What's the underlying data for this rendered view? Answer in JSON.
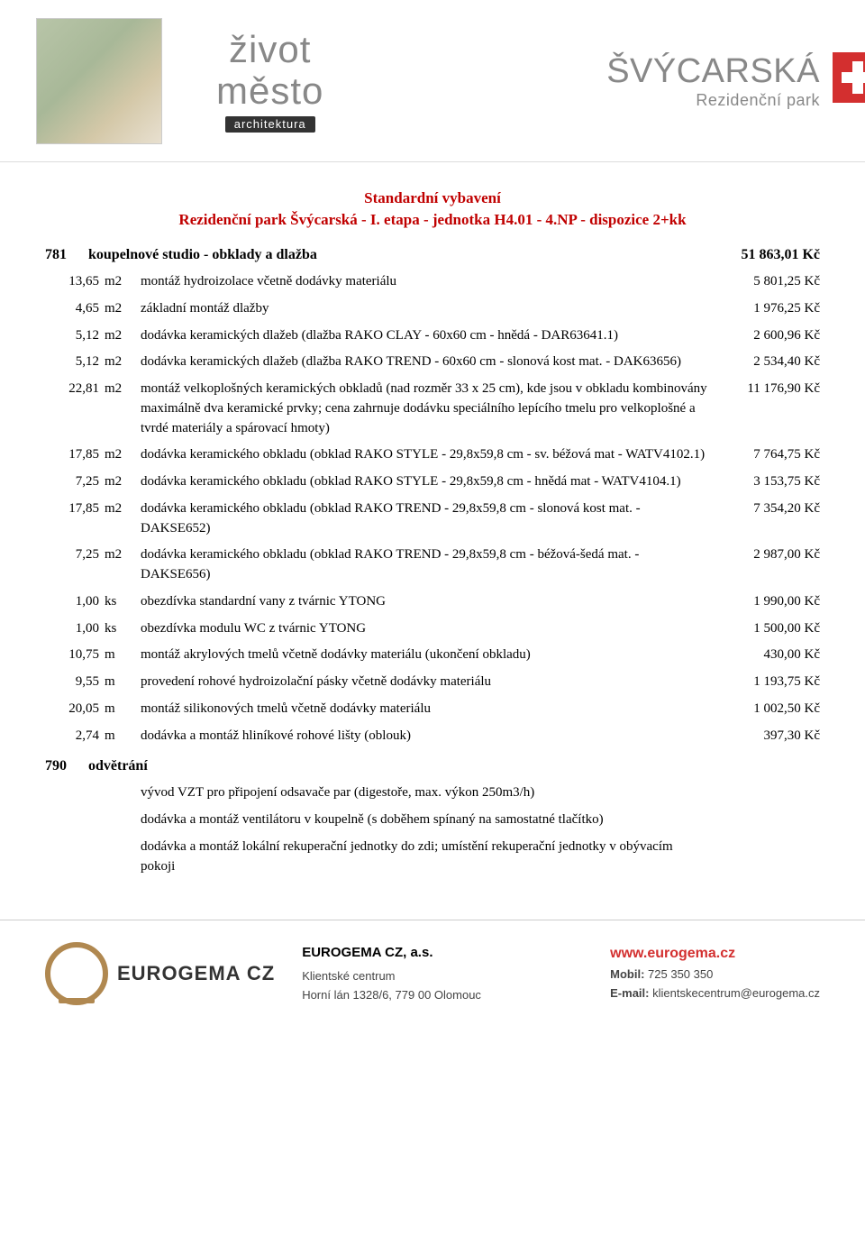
{
  "header": {
    "logo1_line1": "život",
    "logo1_line2": "město",
    "logo1_tag": "architektura",
    "logo2_line1": "ŠVÝCARSKÁ",
    "logo2_line2": "Rezidenční park"
  },
  "doc": {
    "title": "Standardní vybavení",
    "subtitle": "Rezidenční park Švýcarská - I. etapa - jednotka H4.01 - 4.NP - dispozice 2+kk"
  },
  "sections": [
    {
      "code": "781",
      "title": "koupelnové studio - obklady a dlažba",
      "total": "51 863,01 Kč",
      "items": [
        {
          "qty": "13,65",
          "unit": "m2",
          "desc": "montáž hydroizolace včetně dodávky materiálu",
          "price": "5 801,25 Kč"
        },
        {
          "qty": "4,65",
          "unit": "m2",
          "desc": "základní montáž dlažby",
          "price": "1 976,25 Kč"
        },
        {
          "qty": "5,12",
          "unit": "m2",
          "desc": "dodávka keramických dlažeb (dlažba RAKO CLAY - 60x60 cm - hnědá - DAR63641.1)",
          "price": "2 600,96 Kč"
        },
        {
          "qty": "5,12",
          "unit": "m2",
          "desc": "dodávka keramických dlažeb (dlažba RAKO TREND - 60x60 cm - slonová kost mat. - DAK63656)",
          "price": "2 534,40 Kč"
        },
        {
          "qty": "22,81",
          "unit": "m2",
          "desc": "montáž velkoplošných keramických obkladů (nad rozměr 33 x 25 cm), kde jsou v obkladu kombinovány maximálně dva keramické prvky; cena zahrnuje dodávku speciálního lepícího tmelu pro velkoplošné a tvrdé materiály a spárovací hmoty)",
          "price": "11 176,90 Kč"
        },
        {
          "qty": "17,85",
          "unit": "m2",
          "desc": "dodávka keramického obkladu (obklad RAKO STYLE - 29,8x59,8 cm - sv. béžová mat - WATV4102.1)",
          "price": "7 764,75 Kč"
        },
        {
          "qty": "7,25",
          "unit": "m2",
          "desc": "dodávka keramického obkladu (obklad RAKO STYLE - 29,8x59,8 cm - hnědá mat - WATV4104.1)",
          "price": "3 153,75 Kč"
        },
        {
          "qty": "17,85",
          "unit": "m2",
          "desc": "dodávka keramického obkladu (obklad RAKO TREND - 29,8x59,8 cm - slonová kost mat. - DAKSE652)",
          "price": "7 354,20 Kč"
        },
        {
          "qty": "7,25",
          "unit": "m2",
          "desc": "dodávka keramického obkladu (obklad RAKO TREND - 29,8x59,8 cm - béžová-šedá mat. - DAKSE656)",
          "price": "2 987,00 Kč"
        },
        {
          "qty": "1,00",
          "unit": "ks",
          "desc": "obezdívka standardní vany z tvárnic YTONG",
          "price": "1 990,00 Kč"
        },
        {
          "qty": "1,00",
          "unit": "ks",
          "desc": "obezdívka modulu WC z tvárnic YTONG",
          "price": "1 500,00 Kč"
        },
        {
          "qty": "10,75",
          "unit": "m",
          "desc": "montáž akrylových tmelů včetně dodávky materiálu (ukončení obkladu)",
          "price": "430,00 Kč"
        },
        {
          "qty": "9,55",
          "unit": "m",
          "desc": "provedení rohové hydroizolační pásky včetně dodávky materiálu",
          "price": "1 193,75 Kč"
        },
        {
          "qty": "20,05",
          "unit": "m",
          "desc": "montáž silikonových tmelů včetně dodávky materiálu",
          "price": "1 002,50 Kč"
        },
        {
          "qty": "2,74",
          "unit": "m",
          "desc": "dodávka a montáž hliníkové rohové lišty (oblouk)",
          "price": "397,30 Kč"
        }
      ]
    },
    {
      "code": "790",
      "title": "odvětrání",
      "total": "",
      "items": [
        {
          "qty": "",
          "unit": "",
          "desc": "vývod VZT pro připojení odsavače par (digestoře, max. výkon 250m3/h)",
          "price": ""
        },
        {
          "qty": "",
          "unit": "",
          "desc": "dodávka a montáž ventilátoru v koupelně (s doběhem spínaný na samostatné tlačítko)",
          "price": ""
        },
        {
          "qty": "",
          "unit": "",
          "desc": "dodávka a montáž lokální rekuperační jednotky do zdi; umístění rekuperační jednotky v obývacím pokoji",
          "price": ""
        }
      ]
    }
  ],
  "footer": {
    "brand": "EUROGEMA CZ",
    "company": "EUROGEMA CZ, a.s.",
    "center_label": "Klientské centrum",
    "address": "Horní lán 1328/6, 779 00 Olomouc",
    "url": "www.eurogema.cz",
    "mobil_label": "Mobil:",
    "mobil": "725 350 350",
    "email_label": "E-mail:",
    "email": "klientskecentrum@eurogema.cz"
  },
  "style": {
    "accent_color": "#c00000",
    "flag_red": "#d32f2f",
    "text_color": "#000000",
    "body_font": "Georgia, serif",
    "title_fontsize_pt": 13,
    "body_fontsize_pt": 11
  }
}
